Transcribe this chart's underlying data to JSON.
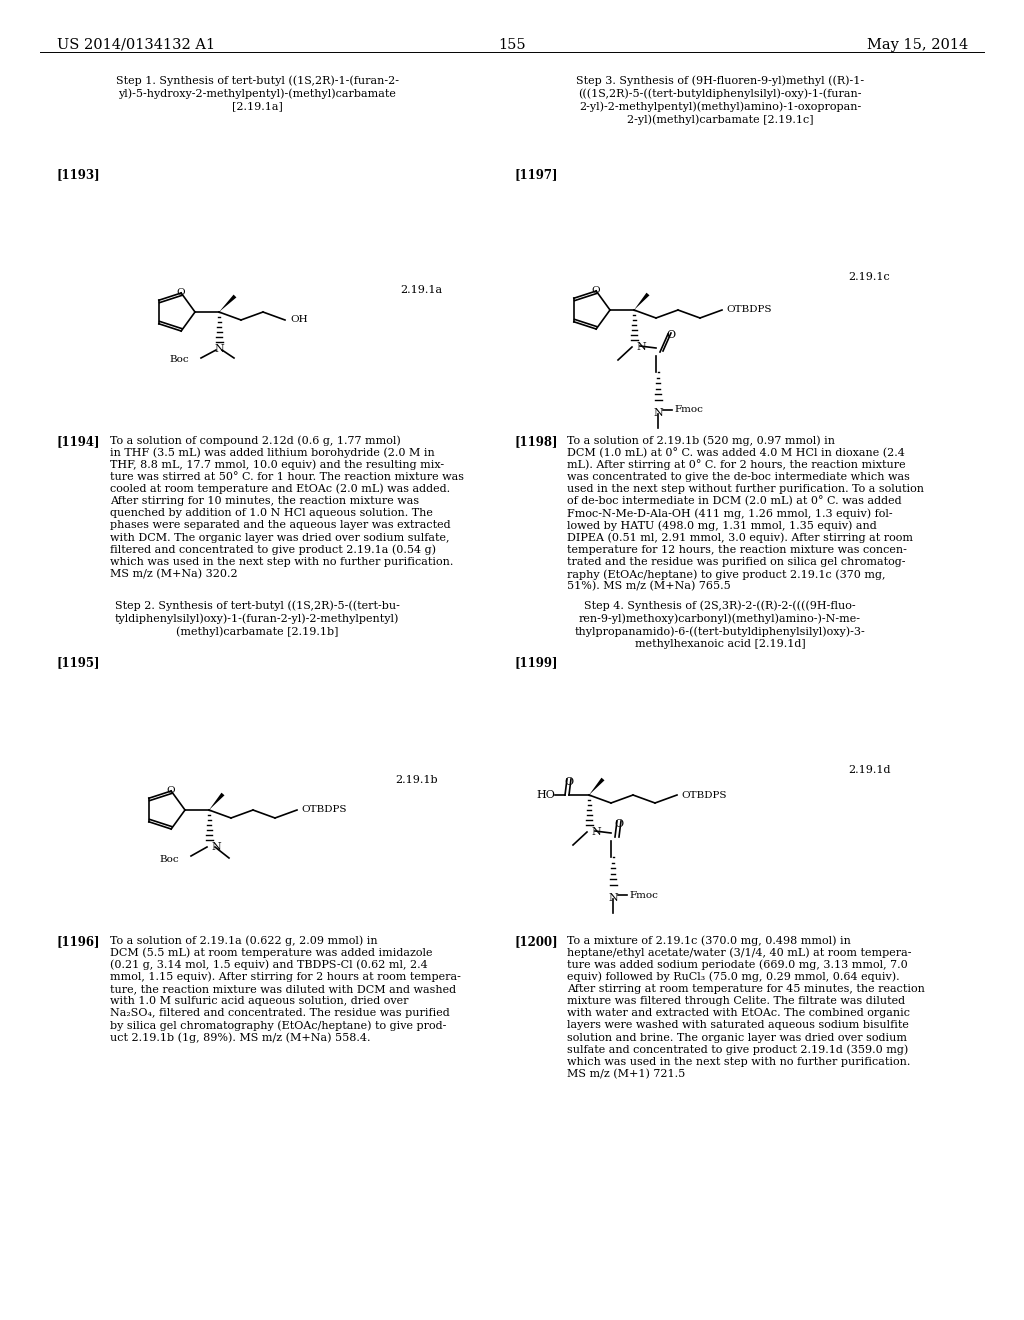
{
  "page_number": "155",
  "header_left": "US 2014/0134132 A1",
  "header_right": "May 15, 2014",
  "background_color": "#ffffff",
  "text_color": "#000000",
  "font_size_header": 10.5,
  "font_size_body": 8.0,
  "font_size_label": 8.5,
  "font_size_chem": 7.5,
  "step1_title_lines": [
    "Step 1. Synthesis of tert-butyl ((1S,2R)-1-(furan-2-",
    "yl)-5-hydroxy-2-methylpentyl)-(methyl)carbamate",
    "[2.19.1a]"
  ],
  "step2_title_lines": [
    "Step 2. Synthesis of tert-butyl ((1S,2R)-5-((tert-bu-",
    "tyldiphenylsilyl)oxy)-1-(furan-2-yl)-2-methylpentyl)",
    "(methyl)carbamate [2.19.1b]"
  ],
  "step3_title_lines": [
    "Step 3. Synthesis of (9H-fluoren-9-yl)methyl ((R)-1-",
    "(((1S,2R)-5-((tert-butyldiphenylsilyl)-oxy)-1-(furan-",
    "2-yl)-2-methylpentyl)(methyl)amino)-1-oxopropan-",
    "2-yl)(methyl)carbamate [2.19.1c]"
  ],
  "step4_title_lines": [
    "Step 4. Synthesis of (2S,3R)-2-((R)-2-((((9H-fluo-",
    "ren-9-yl)methoxy)carbonyl)(methyl)amino-)-N-me-",
    "thylpropanamido)-6-((tert-butyldiphenylsilyl)oxy)-3-",
    "methylhexanoic acid [2.19.1d]"
  ],
  "ref1193": "[1193]",
  "ref1194": "[1194]",
  "ref1195": "[1195]",
  "ref1196": "[1196]",
  "ref1197": "[1197]",
  "ref1198": "[1198]",
  "ref1199": "[1199]",
  "ref1200": "[1200]",
  "label_219_1a": "2.19.1a",
  "label_219_1b": "2.19.1b",
  "label_219_1c": "2.19.1c",
  "label_219_1d": "2.19.1d",
  "text1194_lines": [
    "To a solution of compound 2.12d (0.6 g, 1.77 mmol)",
    "in THF (3.5 mL) was added lithium borohydride (2.0 M in",
    "THF, 8.8 mL, 17.7 mmol, 10.0 equiv) and the resulting mix-",
    "ture was stirred at 50° C. for 1 hour. The reaction mixture was",
    "cooled at room temperature and EtOAc (2.0 mL) was added.",
    "After stirring for 10 minutes, the reaction mixture was",
    "quenched by addition of 1.0 N HCl aqueous solution. The",
    "phases were separated and the aqueous layer was extracted",
    "with DCM. The organic layer was dried over sodium sulfate,",
    "filtered and concentrated to give product 2.19.1a (0.54 g)",
    "which was used in the next step with no further purification.",
    "MS m/z (M+Na) 320.2"
  ],
  "text1196_lines": [
    "To a solution of 2.19.1a (0.622 g, 2.09 mmol) in",
    "DCM (5.5 mL) at room temperature was added imidazole",
    "(0.21 g, 3.14 mol, 1.5 equiv) and TBDPS-Cl (0.62 ml, 2.4",
    "mmol, 1.15 equiv). After stirring for 2 hours at room tempera-",
    "ture, the reaction mixture was diluted with DCM and washed",
    "with 1.0 M sulfuric acid aqueous solution, dried over",
    "Na₂SO₄, filtered and concentrated. The residue was purified",
    "by silica gel chromatography (EtOAc/heptane) to give prod-",
    "uct 2.19.1b (1g, 89%). MS m/z (M+Na) 558.4."
  ],
  "text1198_lines": [
    "To a solution of 2.19.1b (520 mg, 0.97 mmol) in",
    "DCM (1.0 mL) at 0° C. was added 4.0 M HCl in dioxane (2.4",
    "mL). After stirring at 0° C. for 2 hours, the reaction mixture",
    "was concentrated to give the de-boc intermediate which was",
    "used in the next step without further purification. To a solution",
    "of de-boc intermediate in DCM (2.0 mL) at 0° C. was added",
    "Fmoc-N-Me-D-Ala-OH (411 mg, 1.26 mmol, 1.3 equiv) fol-",
    "lowed by HATU (498.0 mg, 1.31 mmol, 1.35 equiv) and",
    "DIPEA (0.51 ml, 2.91 mmol, 3.0 equiv). After stirring at room",
    "temperature for 12 hours, the reaction mixture was concen-",
    "trated and the residue was purified on silica gel chromatog-",
    "raphy (EtOAc/heptane) to give product 2.19.1c (370 mg,",
    "51%). MS m/z (M+Na) 765.5"
  ],
  "text1200_lines": [
    "To a mixture of 2.19.1c (370.0 mg, 0.498 mmol) in",
    "heptane/ethyl acetate/water (3/1/4, 40 mL) at room tempera-",
    "ture was added sodium periodate (669.0 mg, 3.13 mmol, 7.0",
    "equiv) followed by RuCl₃ (75.0 mg, 0.29 mmol, 0.64 equiv).",
    "After stirring at room temperature for 45 minutes, the reaction",
    "mixture was filtered through Celite. The filtrate was diluted",
    "with water and extracted with EtOAc. The combined organic",
    "layers were washed with saturated aqueous sodium bisulfite",
    "solution and brine. The organic layer was dried over sodium",
    "sulfate and concentrated to give product 2.19.1d (359.0 mg)",
    "which was used in the next step with no further purification.",
    "MS m/z (M+1) 721.5"
  ]
}
